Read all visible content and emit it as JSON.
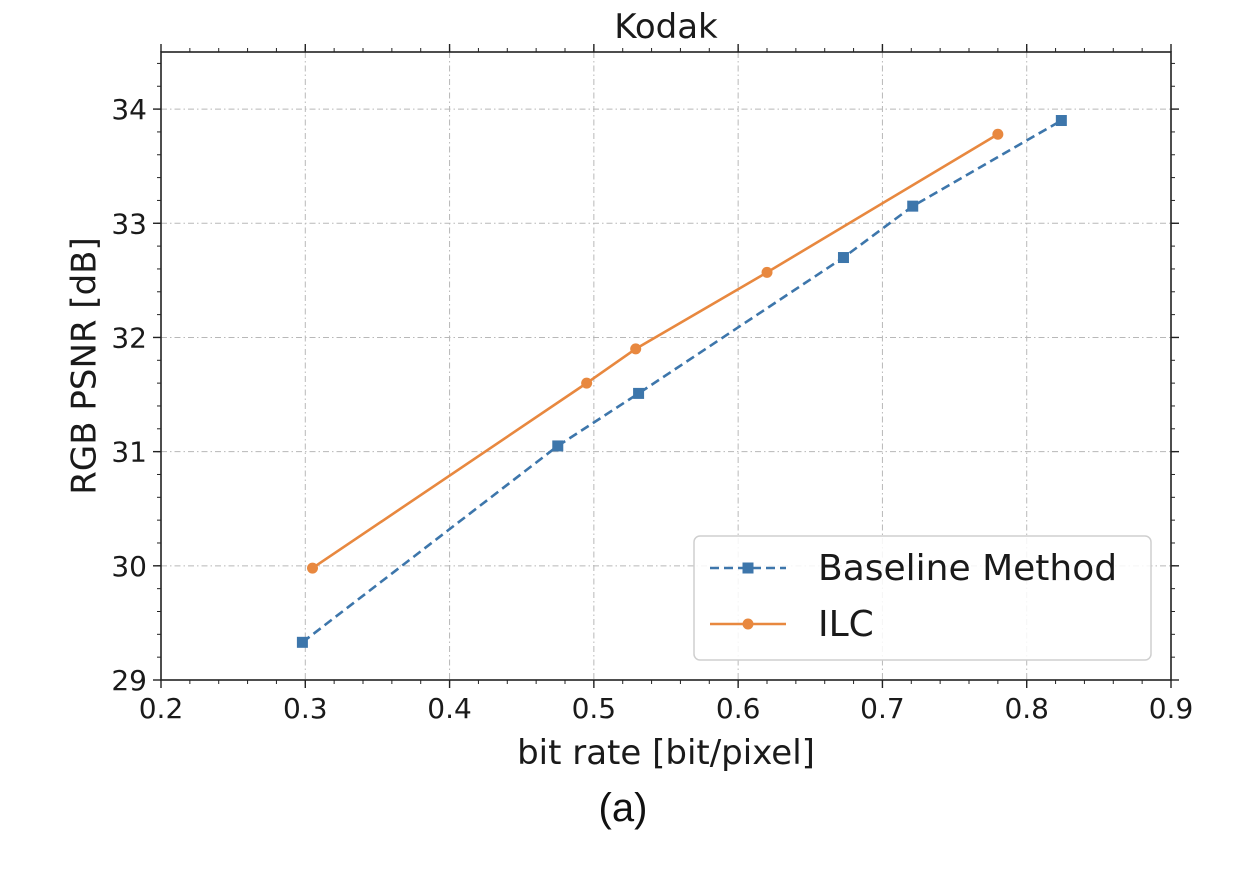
{
  "figure": {
    "caption": "(a)"
  },
  "chart_data": {
    "type": "line",
    "title": "Kodak",
    "xlabel": "bit rate [bit/pixel]",
    "ylabel": "RGB PSNR [dB]",
    "xlim": [
      0.2,
      0.9
    ],
    "ylim": [
      29,
      34.5
    ],
    "xticks": [
      0.2,
      0.3,
      0.4,
      0.5,
      0.6,
      0.7,
      0.8,
      0.9
    ],
    "xtick_labels": [
      "0.2",
      "0.3",
      "0.4",
      "0.5",
      "0.6",
      "0.7",
      "0.8",
      "0.9"
    ],
    "yticks": [
      29,
      30,
      31,
      32,
      33,
      34
    ],
    "ytick_labels": [
      "29",
      "30",
      "31",
      "32",
      "33",
      "34"
    ],
    "grid": true,
    "legend_position": "bottom-right",
    "series": [
      {
        "name": "Baseline Method",
        "color": "#3d76ab",
        "line_style": "dashed",
        "marker": "square",
        "x": [
          0.298,
          0.475,
          0.531,
          0.673,
          0.721,
          0.824
        ],
        "y": [
          29.33,
          31.05,
          31.51,
          32.7,
          33.15,
          33.9
        ]
      },
      {
        "name": "ILC",
        "color": "#e8883f",
        "line_style": "solid",
        "marker": "circle",
        "x": [
          0.305,
          0.495,
          0.529,
          0.62,
          0.78
        ],
        "y": [
          29.98,
          31.6,
          31.9,
          32.57,
          33.78
        ]
      }
    ]
  }
}
